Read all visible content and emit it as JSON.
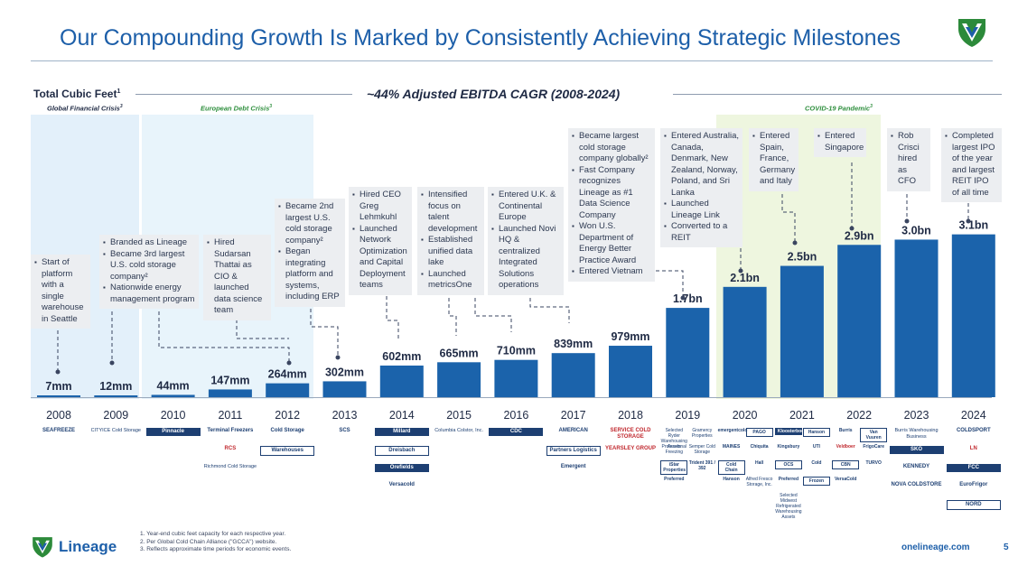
{
  "title": "Our Compounding Growth Is Marked by Consistently Achieving Strategic Milestones",
  "header": {
    "axis_label": "Total Cubic Feet",
    "axis_label_sup": "1",
    "cagr": "~44% Adjusted EBITDA CAGR (2008-2024)"
  },
  "crises": [
    {
      "label": "Global Financial Crisis",
      "sup": "3"
    },
    {
      "label": "European Debt Crisis",
      "sup": "3"
    },
    {
      "label": "COVID-19 Pandemic",
      "sup": "3"
    }
  ],
  "colors": {
    "bar": "#1b63ab",
    "title": "#1d5fa9",
    "crisis_blue": "#e3f0fa",
    "crisis_green": "#eef6df",
    "crisis_label": "#2f8f3e",
    "note_bg": "#eceef1"
  },
  "chart_data": {
    "type": "bar",
    "title": "Total Cubic Feet",
    "categories": [
      "2008",
      "2009",
      "2010",
      "2011",
      "2012",
      "2013",
      "2014",
      "2015",
      "2016",
      "2017",
      "2018",
      "2019",
      "2020",
      "2021",
      "2022",
      "2023",
      "2024"
    ],
    "values": [
      7,
      12,
      44,
      147,
      264,
      302,
      602,
      665,
      710,
      839,
      979,
      1700,
      2100,
      2500,
      2900,
      3000,
      3100
    ],
    "value_units": "million cubic feet",
    "labels": [
      "7mm",
      "12mm",
      "44mm",
      "147mm",
      "264mm",
      "302mm",
      "602mm",
      "665mm",
      "710mm",
      "839mm",
      "979mm",
      "1.7bn",
      "2.1bn",
      "2.5bn",
      "2.9bn",
      "3.0bn",
      "3.1bn"
    ],
    "ylim": [
      0,
      3300
    ],
    "xlabel": "",
    "ylabel": "Total Cubic Feet"
  },
  "milestones": [
    {
      "id": "2008",
      "items": [
        "Start of platform with a single warehouse in Seattle"
      ]
    },
    {
      "id": "2009",
      "items": [
        "Branded as Lineage",
        "Became 3rd largest U.S. cold storage company²",
        "Nationwide energy management program"
      ]
    },
    {
      "id": "2011",
      "items": [
        "Hired Sudarsan Thattai as CIO & launched data science team"
      ]
    },
    {
      "id": "2013",
      "items": [
        "Became 2nd largest U.S. cold storage company²",
        "Began integrating platform and systems, including ERP"
      ]
    },
    {
      "id": "2014",
      "items": [
        "Hired CEO Greg Lehmkuhl",
        "Launched Network Optimization and Capital Deployment teams"
      ]
    },
    {
      "id": "2015",
      "items": [
        "Intensified focus on talent development",
        "Established unified data lake",
        "Launched metricsOne"
      ]
    },
    {
      "id": "2016",
      "items": [
        "Entered U.K. & Continental Europe",
        "Launched Novi HQ & centralized Integrated Solutions operations"
      ]
    },
    {
      "id": "2018",
      "items": [
        "Became largest cold storage company globally²",
        "Fast Company recognizes Lineage as #1 Data Science Company",
        "Won U.S. Department of Energy Better Practice Award",
        "Entered Vietnam"
      ]
    },
    {
      "id": "2020",
      "items": [
        "Entered Australia, Canada, Denmark, New Zealand, Norway, Poland, and Sri Lanka",
        "Launched Lineage Link",
        "Converted to a REIT"
      ]
    },
    {
      "id": "2021",
      "items": [
        "Entered Spain, France, Germany and Italy"
      ]
    },
    {
      "id": "2022",
      "items": [
        "Entered Singapore"
      ]
    },
    {
      "id": "2023",
      "items": [
        "Rob Crisci hired as CFO"
      ]
    },
    {
      "id": "2024",
      "items": [
        "Completed largest IPO of the year and largest REIT IPO of all time"
      ]
    }
  ],
  "acquisitions": {
    "2008": [
      "SEAFREEZE"
    ],
    "2009": [
      "CITYICE Cold Storage"
    ],
    "2010": [
      "Pinnacle"
    ],
    "2011": [
      "Terminal Freezers",
      "RCS",
      "Richmond Cold Storage"
    ],
    "2012": [
      "Cold Storage",
      "Warehouses"
    ],
    "2013": [
      "SCS"
    ],
    "2014": [
      "Millard",
      "Dreisbach",
      "Orefields",
      "Versacold"
    ],
    "2015": [
      "Columbia Colstor, Inc."
    ],
    "2016": [
      "CDC"
    ],
    "2017": [
      "AMERICAN",
      "Partners Logistics",
      "Emergent"
    ],
    "2018": [
      "SERVICE COLD STORAGE",
      "YEARSLEY GROUP"
    ],
    "2019": [
      "Selected Ryder Warehousing Assets",
      "Gramercy Properties",
      "Professional Freezing",
      "Semper Cold Storage",
      "iStar Properties",
      "Trident 391 / 392",
      "Preferred"
    ],
    "2020": [
      "emergentcold",
      "PAGO",
      "MAINES",
      "Chiquita",
      "Cold Chain",
      "Hall",
      "Hanson",
      "Alfred Fresco Storage, Inc."
    ],
    "2021": [
      "Kloosterboer",
      "Hanson",
      "Kingsbury",
      "UTI",
      "OCS",
      "Cold",
      "Preferred",
      "Frozen",
      "Selected Midwest Refrigerated Warehousing Assets"
    ],
    "2022": [
      "Burris",
      "Van Vuuren",
      "Veldboer",
      "FrigoCare",
      "CBN",
      "TURVO",
      "VersaCold"
    ],
    "2023": [
      "Burris Warehousing Business",
      "SKO",
      "KENNEDY",
      "NOVA COLDSTORE"
    ],
    "2024": [
      "COLDSPORT",
      "LN",
      "FCC",
      "EuroFrigor",
      "NORD"
    ]
  },
  "footnotes": [
    "1. Year-end cubic feet capacity for each respective year.",
    "2. Per Global Cold Chain Alliance (\"GCCA\") website.",
    "3. Reflects approximate time periods for economic events."
  ],
  "brand": "Lineage",
  "url": "onelineage.com",
  "page_number": "5"
}
